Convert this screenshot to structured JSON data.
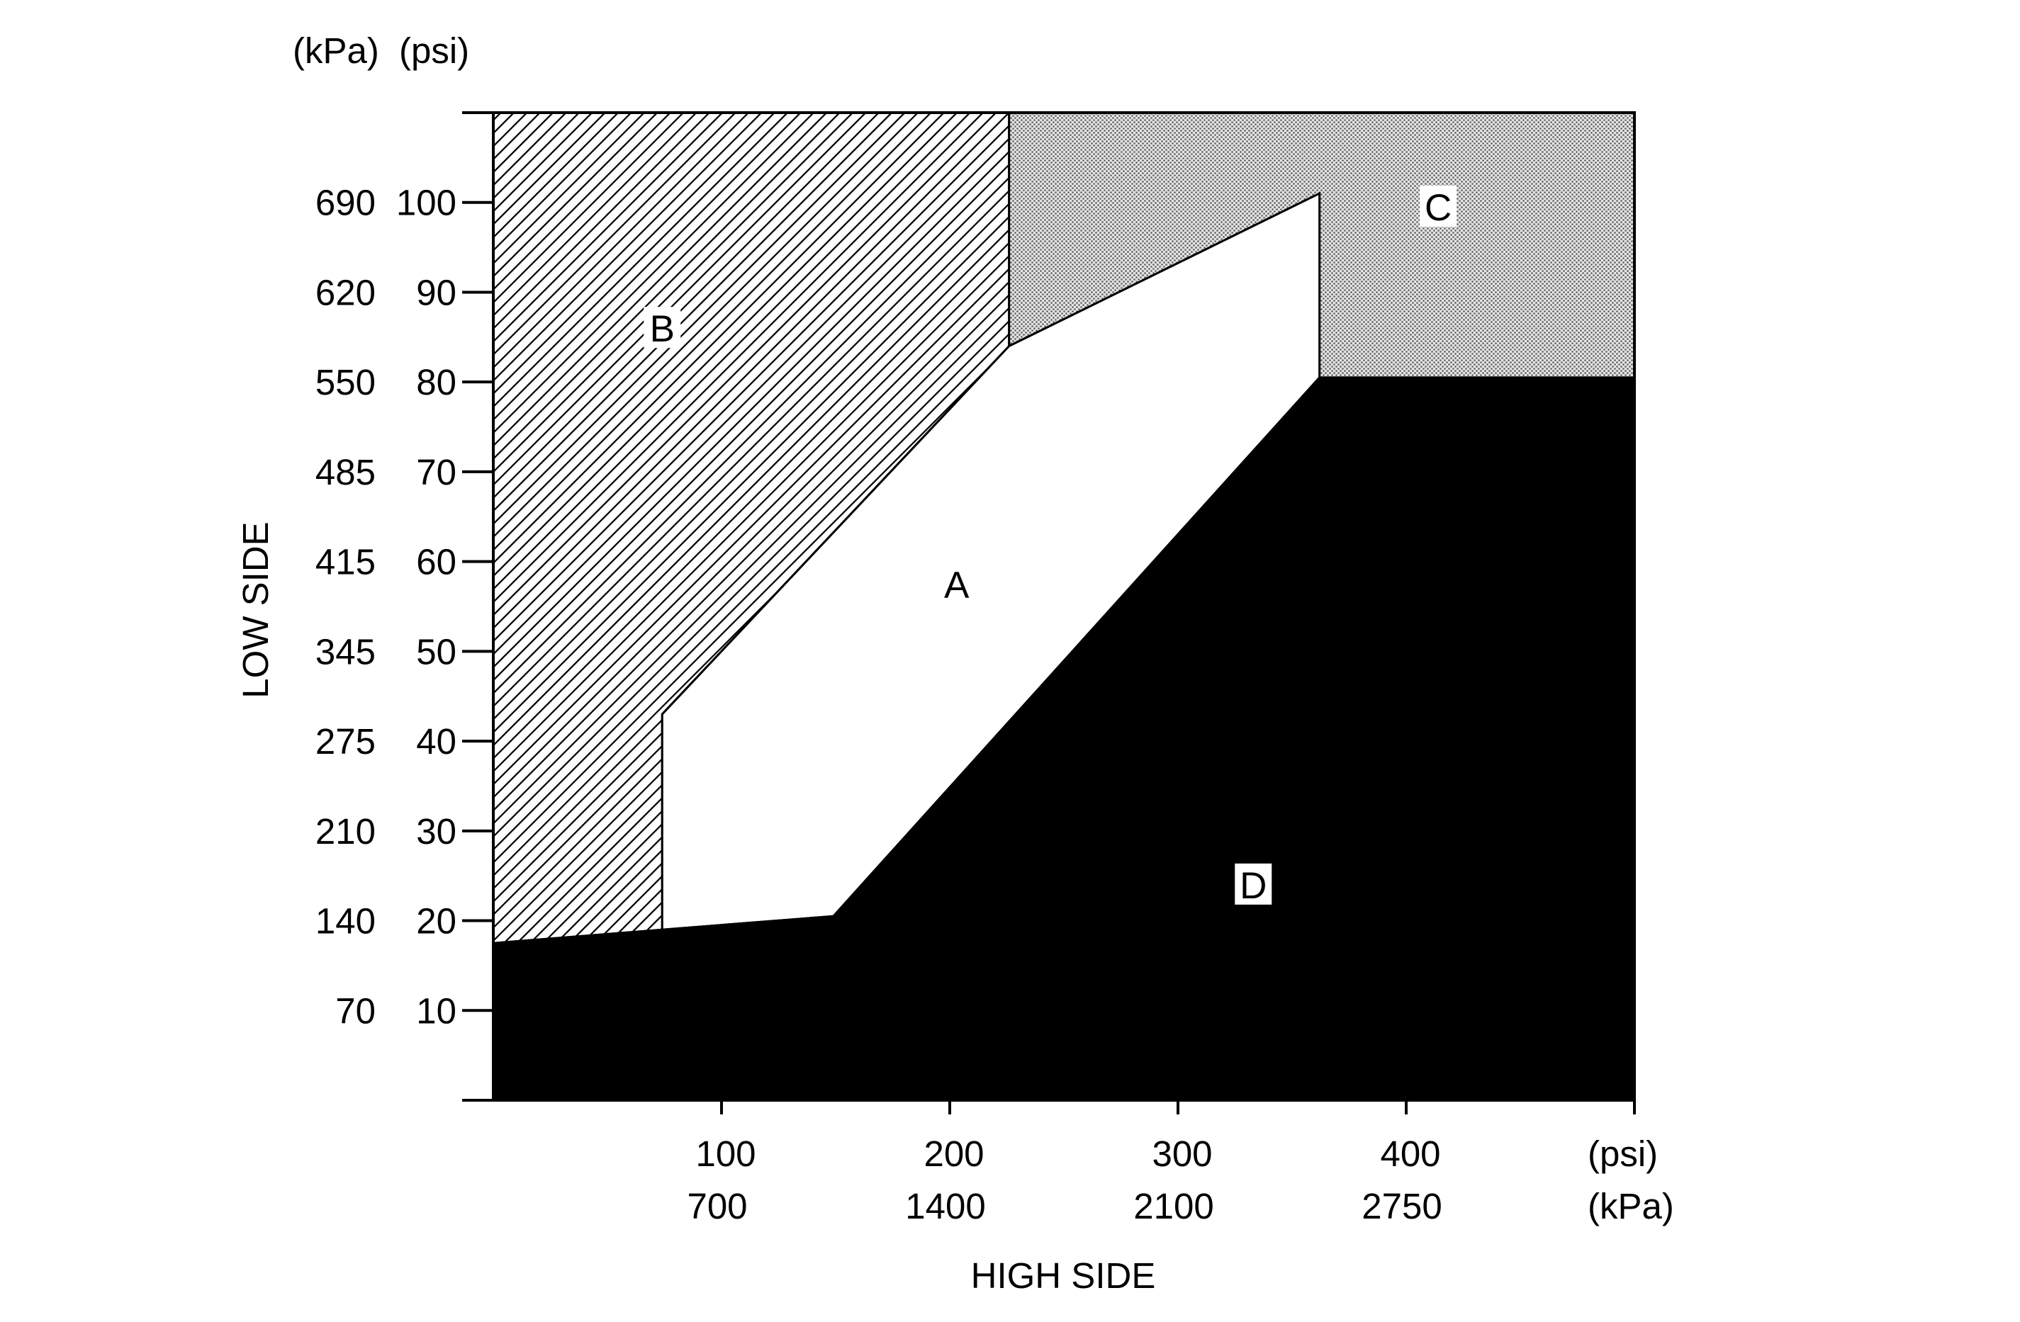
{
  "chart_data": {
    "type": "area",
    "title": "",
    "xlabel": "HIGH SIDE",
    "ylabel": "LOW SIDE",
    "x_units": [
      "(psi)",
      "(kPa)"
    ],
    "y_units": [
      "(kPa)",
      "(psi)"
    ],
    "xlim": [
      0,
      500
    ],
    "ylim": [
      0,
      110
    ],
    "x_ticks": [
      {
        "value": 100,
        "psi": "100",
        "kpa": "700"
      },
      {
        "value": 200,
        "psi": "200",
        "kpa": "1400"
      },
      {
        "value": 300,
        "psi": "300",
        "kpa": "2100"
      },
      {
        "value": 400,
        "psi": "400",
        "kpa": "2750"
      },
      {
        "value": 500,
        "psi": "",
        "kpa": ""
      }
    ],
    "y_ticks": [
      {
        "value": 10,
        "psi": "10",
        "kpa": "70"
      },
      {
        "value": 20,
        "psi": "20",
        "kpa": "140"
      },
      {
        "value": 30,
        "psi": "30",
        "kpa": "210"
      },
      {
        "value": 40,
        "psi": "40",
        "kpa": "275"
      },
      {
        "value": 50,
        "psi": "50",
        "kpa": "345"
      },
      {
        "value": 60,
        "psi": "60",
        "kpa": "415"
      },
      {
        "value": 70,
        "psi": "70",
        "kpa": "485"
      },
      {
        "value": 80,
        "psi": "80",
        "kpa": "550"
      },
      {
        "value": 90,
        "psi": "90",
        "kpa": "620"
      },
      {
        "value": 100,
        "psi": "100",
        "kpa": "690"
      }
    ],
    "regions": [
      {
        "label": "B",
        "fill": "hatched",
        "label_at": [
          74,
          86
        ],
        "points": [
          [
            0,
            0
          ],
          [
            0,
            110
          ],
          [
            226,
            110
          ],
          [
            226,
            84
          ],
          [
            74,
            43
          ],
          [
            74,
            19
          ],
          [
            0,
            17.5
          ]
        ]
      },
      {
        "label": "C",
        "fill": "stippled",
        "label_at": [
          414,
          99.5
        ],
        "points": [
          [
            226,
            110
          ],
          [
            500,
            110
          ],
          [
            500,
            80.5
          ],
          [
            362,
            80.5
          ],
          [
            362,
            101
          ],
          [
            226,
            84
          ]
        ]
      },
      {
        "label": "A",
        "fill": "white",
        "label_at": [
          203,
          57.5
        ],
        "points": [
          [
            74,
            43
          ],
          [
            226,
            84
          ],
          [
            362,
            101
          ],
          [
            362,
            80.5
          ],
          [
            149,
            20.5
          ],
          [
            74,
            19
          ]
        ]
      },
      {
        "label": "D",
        "fill": "black",
        "label_at": [
          333,
          24
        ],
        "points": [
          [
            0,
            0
          ],
          [
            500,
            0
          ],
          [
            500,
            80.5
          ],
          [
            362,
            80.5
          ],
          [
            149,
            20.5
          ],
          [
            74,
            19
          ],
          [
            0,
            17.5
          ]
        ]
      }
    ],
    "colors": {
      "line": "#000000",
      "background": "#ffffff",
      "stipple": "#c8c8c8",
      "d_fill": "#000000"
    }
  }
}
